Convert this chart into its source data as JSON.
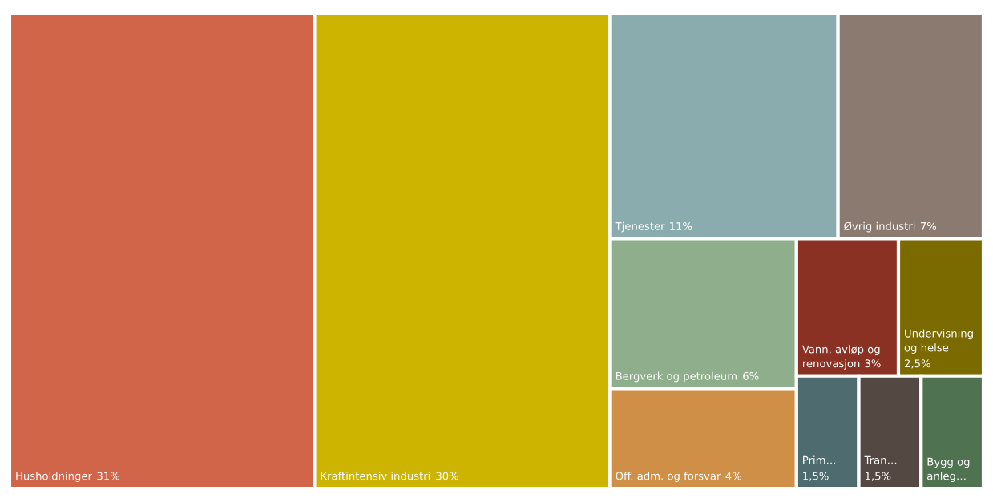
{
  "chart_data": {
    "type": "other",
    "categories": [
      "Husholdninger",
      "Kraftintensiv industri",
      "Tjenester",
      "Øvrig industri",
      "Bergverk og petroleum",
      "Off. adm. og forsvar",
      "Vann, avløp og renovasjon",
      "Undervisning og helse",
      "Prim…",
      "Tran…",
      "Bygg og anleg…"
    ],
    "values": [
      31,
      30,
      11,
      7,
      6,
      4,
      3,
      2.5,
      1.5,
      1.5,
      null
    ],
    "value_labels": [
      "31%",
      "30%",
      "11%",
      "7%",
      "6%",
      "4%",
      "3%",
      "2,5%",
      "1,5%",
      "1,5%",
      null
    ],
    "colors": [
      "#d06549",
      "#ccb400",
      "#8aacae",
      "#8b7a6f",
      "#8fae8b",
      "#d08f47",
      "#8a3124",
      "#7a6a00",
      "#4e6b70",
      "#544843",
      "#4f7350"
    ]
  }
}
